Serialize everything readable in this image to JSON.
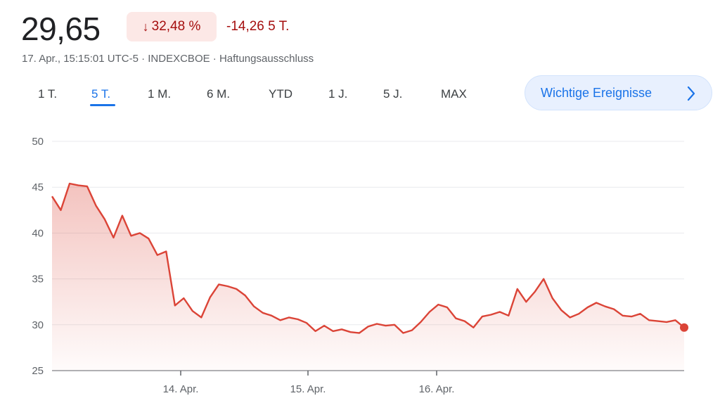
{
  "quote": {
    "price": "29,65",
    "change_percent": "32,48 %",
    "change_arrow": "↓",
    "change_absolute": "-14,26 5 T.",
    "meta": "17. Apr., 15:15:01 UTC-5 · INDEXCBOE · Haftungsausschluss"
  },
  "range_tabs": [
    {
      "label": "1 T."
    },
    {
      "label": "5 T.",
      "active": true
    },
    {
      "label": "1 M."
    },
    {
      "label": "6 M."
    },
    {
      "label": "YTD"
    },
    {
      "label": "1 J."
    },
    {
      "label": "5 J."
    },
    {
      "label": "MAX"
    }
  ],
  "events_button": {
    "label": "Wichtige Ereignisse",
    "icon": "chevron-right-icon"
  },
  "colors": {
    "line": "#db4437",
    "negative": "#a50e0e",
    "accent": "#1a73e8"
  },
  "chart_data": {
    "type": "area",
    "ylim": [
      25,
      50
    ],
    "y_ticks": [
      50,
      45,
      40,
      35,
      30,
      25
    ],
    "x_ticks": [
      {
        "label": "14. Apr.",
        "index": 15
      },
      {
        "label": "15. Apr.",
        "index": 30
      },
      {
        "label": "16. Apr.",
        "index": 45
      }
    ],
    "grid": true,
    "values": [
      44.0,
      42.5,
      45.4,
      45.2,
      45.1,
      43.0,
      41.5,
      39.5,
      41.9,
      39.7,
      40.0,
      39.4,
      37.6,
      38.0,
      32.1,
      32.9,
      31.5,
      30.8,
      33.0,
      34.4,
      34.2,
      33.9,
      33.2,
      32.0,
      31.3,
      31.0,
      30.5,
      30.8,
      30.6,
      30.2,
      29.3,
      29.9,
      29.3,
      29.5,
      29.2,
      29.1,
      29.8,
      30.1,
      29.9,
      30.0,
      29.1,
      29.4,
      30.3,
      31.4,
      32.2,
      31.9,
      30.7,
      30.4,
      29.7,
      30.9,
      31.1,
      31.4,
      31.0,
      33.9,
      32.5,
      33.6,
      35.0,
      32.9,
      31.6,
      30.8,
      31.2,
      31.9,
      32.4,
      32.0,
      31.7,
      31.0,
      30.9,
      31.2,
      30.5,
      30.4,
      30.3,
      30.5,
      29.7
    ],
    "last_value": 29.65
  }
}
